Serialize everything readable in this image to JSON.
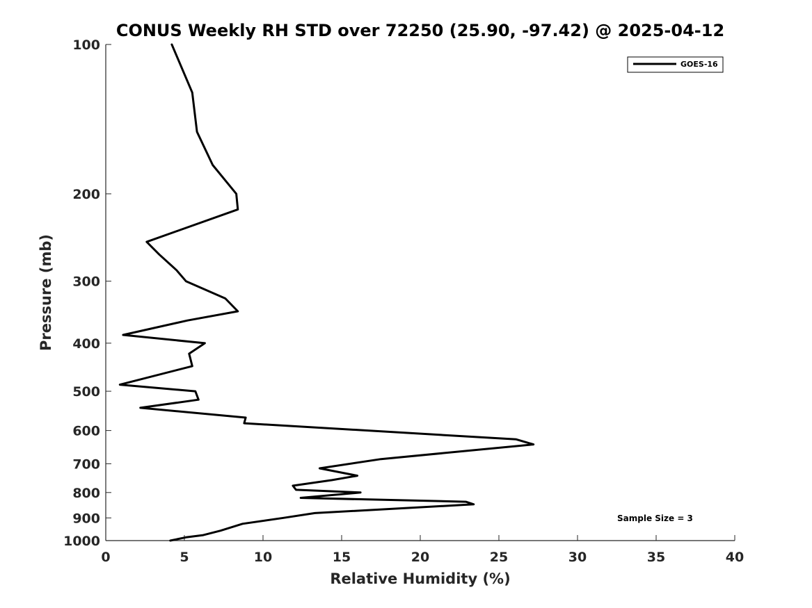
{
  "chart_data": {
    "type": "line",
    "title": "CONUS Weekly RH STD over 72250 (25.90, -97.42) @ 2025-04-12",
    "xlabel": "Relative Humidity (%)",
    "ylabel": "Pressure (mb)",
    "xlim": [
      0,
      40
    ],
    "ylim": [
      1000,
      100
    ],
    "yscale": "log",
    "xticks": [
      0,
      5,
      10,
      15,
      20,
      25,
      30,
      35,
      40
    ],
    "yticks": [
      100,
      200,
      300,
      400,
      500,
      600,
      700,
      800,
      900,
      1000
    ],
    "legend_position": "top-right",
    "series": [
      {
        "name": "GOES-16",
        "color": "#000000",
        "points": [
          [
            4.2,
            100
          ],
          [
            5.5,
            125
          ],
          [
            5.8,
            150
          ],
          [
            6.8,
            175
          ],
          [
            8.3,
            200
          ],
          [
            8.4,
            215
          ],
          [
            2.6,
            250
          ],
          [
            3.4,
            265
          ],
          [
            4.5,
            285
          ],
          [
            5.1,
            300
          ],
          [
            7.6,
            325
          ],
          [
            8.4,
            345
          ],
          [
            5.2,
            360
          ],
          [
            1.1,
            385
          ],
          [
            6.3,
            400
          ],
          [
            5.3,
            420
          ],
          [
            5.5,
            445
          ],
          [
            0.9,
            485
          ],
          [
            5.7,
            500
          ],
          [
            5.9,
            520
          ],
          [
            2.2,
            540
          ],
          [
            8.9,
            565
          ],
          [
            8.8,
            580
          ],
          [
            26.1,
            625
          ],
          [
            27.2,
            640
          ],
          [
            17.5,
            685
          ],
          [
            13.6,
            715
          ],
          [
            16.0,
            740
          ],
          [
            14.4,
            755
          ],
          [
            11.9,
            775
          ],
          [
            12.1,
            790
          ],
          [
            16.2,
            800
          ],
          [
            12.4,
            820
          ],
          [
            22.9,
            835
          ],
          [
            23.4,
            845
          ],
          [
            13.3,
            880
          ],
          [
            11.3,
            900
          ],
          [
            8.7,
            925
          ],
          [
            7.3,
            955
          ],
          [
            6.2,
            975
          ],
          [
            5.1,
            985
          ],
          [
            4.1,
            1000
          ]
        ]
      }
    ],
    "annotations": [
      "Sample Size = 3"
    ]
  }
}
